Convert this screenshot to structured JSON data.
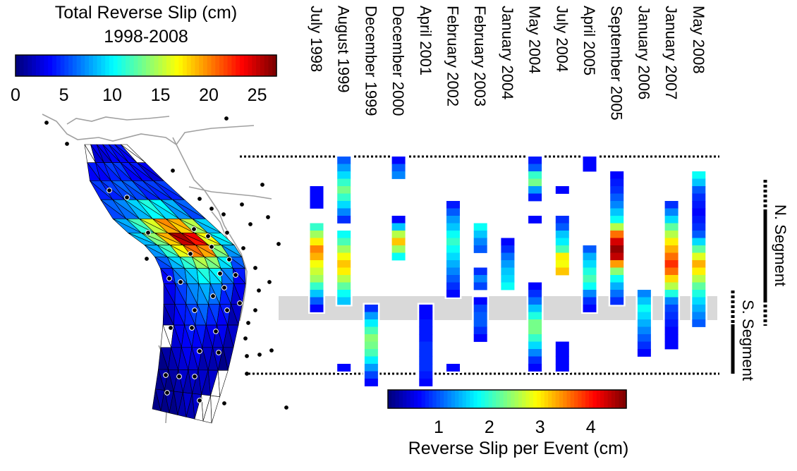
{
  "chart_data": [
    {
      "type": "map",
      "title": "Total Reverse Slip (cm)",
      "subtitle": "1998-2008",
      "colorbar": {
        "ticks": [
          0,
          5,
          10,
          15,
          20,
          25
        ],
        "range": [
          0,
          27
        ],
        "colormap": "jet"
      },
      "cell_slip_cm": [
        [
          3,
          3,
          4,
          4,
          4
        ],
        [
          4,
          4,
          5,
          5,
          4,
          4,
          3
        ],
        [
          5,
          5,
          6,
          6,
          5,
          5,
          5
        ],
        [
          6,
          7,
          9,
          11,
          10,
          8,
          6
        ],
        [
          8,
          12,
          16,
          20,
          19,
          15,
          9
        ],
        [
          9,
          14,
          19,
          26,
          24,
          17,
          10
        ],
        [
          8,
          12,
          17,
          21,
          20,
          14,
          8
        ],
        [
          6,
          9,
          12,
          15,
          14,
          10,
          6
        ],
        [
          4,
          7,
          9,
          11,
          10,
          7,
          4
        ],
        [
          3,
          5,
          7,
          8,
          7,
          5,
          3
        ],
        [
          2,
          4,
          5,
          6,
          5,
          4,
          2
        ],
        [
          2,
          3,
          4,
          4,
          3,
          3,
          2
        ],
        [
          1,
          2,
          3,
          3,
          2,
          2,
          1
        ],
        [
          1,
          2,
          2,
          2,
          2,
          1
        ],
        [
          1,
          1,
          2,
          1,
          1
        ]
      ]
    },
    {
      "type": "heatmap",
      "xlabel": "Reverse Slip per Event (cm)",
      "colorbar": {
        "ticks": [
          1,
          2,
          3,
          4
        ],
        "range": [
          0,
          4.7
        ],
        "colormap": "jet"
      },
      "categories": [
        "July 1998",
        "August 1999",
        "December 1999",
        "December 2000",
        "April 2001",
        "February 2002",
        "February 2003",
        "January 2004",
        "May 2004",
        "July 2004",
        "April 2005",
        "September 2005",
        "January 2006",
        "January 2007",
        "May 2008"
      ],
      "segment_labels": [
        "N. Segment",
        "S. Segment"
      ],
      "series": [
        {
          "name": "July 1998",
          "blocks": [
            {
              "from": 4,
              "values": [
                0.6,
                0.6,
                0.6
              ]
            },
            {
              "from": 9,
              "values": [
                2,
                2.5,
                3,
                3.5,
                3.3,
                2.9,
                2.7,
                2.5,
                2,
                1.5,
                1,
                0.6
              ]
            }
          ]
        },
        {
          "name": "August 1999",
          "blocks": [
            {
              "from": 0,
              "values": [
                1,
                1.3,
                1.6,
                2,
                2.3,
                2,
                1.6,
                1.2,
                0.8
              ]
            },
            {
              "from": 10,
              "values": [
                1.8,
                2.1,
                2.5,
                2.9,
                3.2,
                3,
                2.6,
                2.2,
                1.8,
                1.5
              ]
            },
            {
              "from": 28,
              "values": [
                0.6
              ]
            }
          ]
        },
        {
          "name": "December 1999",
          "blocks": [
            {
              "from": 20,
              "values": [
                0.8,
                1.3,
                1.7,
                2.1,
                2.4,
                2.3,
                2.1,
                1.7,
                1.3,
                0.9,
                0.6
              ]
            }
          ]
        },
        {
          "name": "December 2000",
          "blocks": [
            {
              "from": 0,
              "values": [
                0.6,
                1,
                1.2
              ]
            },
            {
              "from": 8,
              "values": [
                0.6,
                1.5,
                2.6,
                3.2,
                2.5,
                1.8
              ]
            }
          ]
        },
        {
          "name": "April 2001",
          "blocks": [
            {
              "from": 20,
              "values": [
                0.6,
                0.6,
                0.7,
                0.7,
                0.7,
                0.8,
                0.8,
                0.8,
                0.8,
                0.7,
                0.6
              ]
            }
          ]
        },
        {
          "name": "February 2002",
          "blocks": [
            {
              "from": 6,
              "values": [
                0.7,
                1,
                1.3,
                1.5,
                1.8,
                2,
                1.8,
                1.6,
                1.4,
                1.2,
                1,
                0.8,
                0.6
              ]
            },
            {
              "from": 28,
              "values": [
                0.6
              ]
            }
          ]
        },
        {
          "name": "February 2003",
          "blocks": [
            {
              "from": 9,
              "values": [
                1.8,
                1.5,
                1.2,
                1
              ]
            },
            {
              "from": 15,
              "values": [
                0.8,
                1.2,
                0.9
              ]
            },
            {
              "from": 19,
              "values": [
                0.6,
                0.9,
                1,
                1,
                0.8,
                0.6
              ]
            }
          ]
        },
        {
          "name": "January 2004",
          "blocks": [
            {
              "from": 11,
              "values": [
                0.6,
                0.8,
                1.1,
                1.3,
                1.5,
                1.6,
                1.8
              ]
            }
          ]
        },
        {
          "name": "May 2004",
          "blocks": [
            {
              "from": 0,
              "values": [
                0.7,
                1,
                2,
                2.3,
                1.3,
                0.7
              ]
            },
            {
              "from": 8,
              "values": [
                0.6
              ]
            },
            {
              "from": 17,
              "values": [
                0.6,
                0.8,
                1.1,
                1.5,
                1.9,
                2.3,
                2.3,
                2.0,
                1.6,
                1.2,
                0.8,
                0.6
              ]
            }
          ]
        },
        {
          "name": "July 2004",
          "blocks": [
            {
              "from": 4,
              "values": [
                0.6
              ]
            },
            {
              "from": 8,
              "values": [
                0.8,
                1,
                1.5,
                1.7,
                2.1,
                3,
                2.9,
                3.2
              ]
            },
            {
              "from": 25,
              "values": [
                0.6,
                0.6,
                0.6,
                0.6
              ]
            }
          ]
        },
        {
          "name": "April 2005",
          "blocks": [
            {
              "from": 0,
              "values": [
                0.6,
                0.6
              ]
            },
            {
              "from": 12,
              "values": [
                1,
                1.4,
                1.6,
                1.9,
                2.1,
                1.8,
                1.2,
                0.8,
                0.6
              ]
            }
          ]
        },
        {
          "name": "September 2005",
          "blocks": [
            {
              "from": 2,
              "values": [
                0.6,
                0.7,
                0.8,
                1,
                1.2,
                1.5,
                1.8,
                2.6,
                3.6,
                4.3,
                4.6,
                4.4,
                3.4,
                2.4,
                1.8,
                1.4,
                1.1,
                0.8
              ]
            }
          ]
        },
        {
          "name": "January 2006",
          "blocks": [
            {
              "from": 18,
              "values": [
                1.2,
                1.5,
                1.8,
                1.6,
                1.4,
                1.2,
                1,
                0.8,
                0.6
              ]
            }
          ]
        },
        {
          "name": "January 2007",
          "blocks": [
            {
              "from": 6,
              "values": [
                0.8,
                1.2,
                1.6,
                2.2,
                2.6,
                3,
                3.3,
                3.6,
                3.9,
                3.6,
                3.1,
                2.6,
                1.9,
                1.2,
                0.9,
                0.8,
                0.7,
                0.6,
                0.6,
                0.6
              ]
            }
          ]
        },
        {
          "name": "May 2008",
          "blocks": [
            {
              "from": 2,
              "values": [
                1.8,
                1.5,
                1,
                0.8,
                0.7,
                0.6,
                0.7,
                0.8,
                1,
                1.6,
                2.2,
                2.8,
                3.3,
                3.0,
                2.6,
                2.2,
                1.9,
                1.6,
                1.4,
                1.2,
                1
              ]
            }
          ]
        }
      ]
    }
  ]
}
